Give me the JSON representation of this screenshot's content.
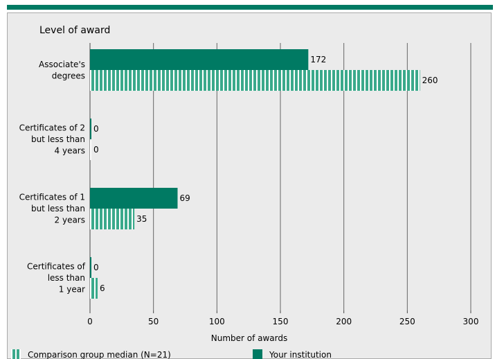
{
  "chart_data": {
    "type": "bar",
    "orientation": "horizontal",
    "ylabel": "Level of award",
    "xlabel": "Number of awards",
    "xlim": [
      0,
      300
    ],
    "xticks": [
      0,
      50,
      100,
      150,
      200,
      250,
      300
    ],
    "grid": true,
    "legend_position": "bottom",
    "categories": [
      [
        "Associate's",
        "degrees"
      ],
      [
        "Certificates of 2",
        "but less than",
        "4 years"
      ],
      [
        "Certificates of 1",
        "but less than",
        "2 years"
      ],
      [
        "Certificates of",
        "less than",
        "1 year"
      ]
    ],
    "series": [
      {
        "name": "Your institution",
        "values": [
          172,
          0,
          69,
          0
        ],
        "style": "solid",
        "color": "#007a63"
      },
      {
        "name": "Comparison group median (N=21)",
        "values": [
          260,
          0,
          35,
          6
        ],
        "style": "striped",
        "color": "#3aa98b"
      }
    ]
  }
}
